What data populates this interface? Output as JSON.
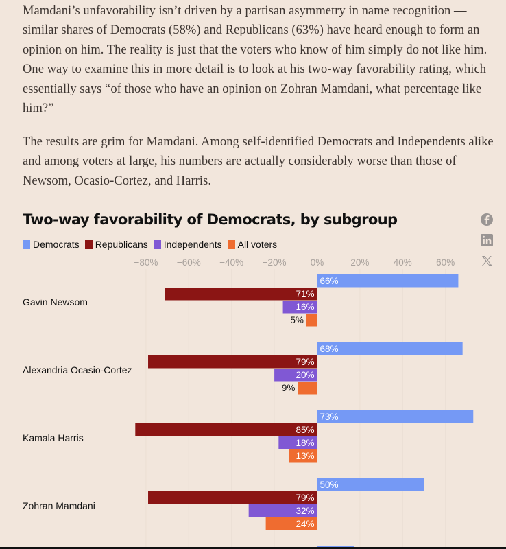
{
  "article": {
    "paragraphs": [
      "Mamdani’s unfavorability isn’t driven by a partisan asymmetry in name recognition — similar shares of Democrats (58%) and Republicans (63%) have heard enough to form an opinion on him. The reality is just that the voters who know of him simply do not like him. One way to examine this in more detail is to look at his two-way favorability rating, which essentially says “of those who have an opinion on Zohran Mamdani, what percentage like him?”",
      "The results are grim for Mamdani. Among self-identified Democrats and Independents alike and among voters at large, his numbers are actually considerably worse than those of Newsom, Ocasio-Cortez, and Harris."
    ]
  },
  "share": {
    "icons": [
      "facebook-icon",
      "linkedin-icon",
      "x-icon"
    ]
  },
  "chart_data": {
    "type": "bar",
    "orientation": "horizontal-grouped",
    "title": "Two-way favorability of Democrats, by subgroup",
    "xlabel": "",
    "ylabel": "",
    "xlim": [
      -85,
      73
    ],
    "ticks": [
      "−80%",
      "−60%",
      "−40%",
      "−20%",
      "0%",
      "20%",
      "40%",
      "60%"
    ],
    "tick_values": [
      -80,
      -60,
      -40,
      -20,
      0,
      20,
      40,
      60
    ],
    "grid": true,
    "legend_position": "top-left",
    "categories": [
      "Gavin Newsom",
      "Alexandria Ocasio-Cortez",
      "Kamala Harris",
      "Zohran Mamdani"
    ],
    "series": [
      {
        "name": "Democrats",
        "color": "#7599f5",
        "values": [
          66,
          68,
          73,
          50
        ],
        "labels": [
          "66%",
          "68%",
          "73%",
          "50%"
        ]
      },
      {
        "name": "Republicans",
        "color": "#8b1514",
        "values": [
          -71,
          -79,
          -85,
          -79
        ],
        "labels": [
          "−71%",
          "−79%",
          "−85%",
          "−79%"
        ]
      },
      {
        "name": "Independents",
        "color": "#8058d4",
        "values": [
          -16,
          -20,
          -18,
          -32
        ],
        "labels": [
          "−16%",
          "−20%",
          "−18%",
          "−32%"
        ]
      },
      {
        "name": "All voters",
        "color": "#ef6c30",
        "values": [
          -5,
          -9,
          -13,
          -24
        ],
        "labels": [
          "−5%",
          "−9%",
          "−13%",
          "−24%"
        ]
      }
    ]
  }
}
